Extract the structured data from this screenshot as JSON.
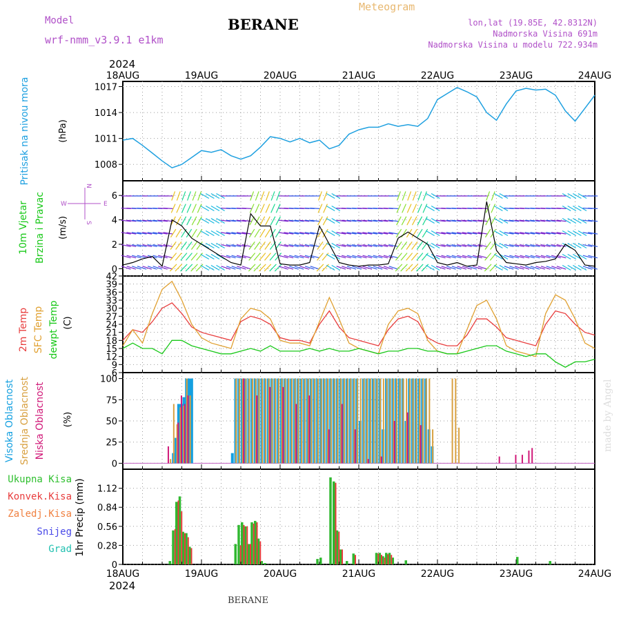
{
  "header": {
    "model_label": "Model",
    "model_name": "wrf-nmm_v3.9.1 e1km",
    "station": "BERANE",
    "product": "Meteogram",
    "coords": "lon,lat (19.85E, 42.8312N)",
    "elevation": "Nadmorska Visina 691m",
    "model_elevation": "Nadmorska Visina u modelu 722.934m",
    "year": "2024",
    "footer_station": "BERANE",
    "credit": "made by Angel"
  },
  "colors": {
    "pressure": "#1ea0e0",
    "wind_speed": "#000000",
    "temp_2m": "#e83c3c",
    "temp_sfc": "#e0a030",
    "dewpoint": "#18c818",
    "cloud_high": "#14a0e0",
    "cloud_mid": "#d8a040",
    "cloud_low": "#d01878",
    "precip_total": "#30b830",
    "precip_conv": "#e83c3c",
    "frame": "#000000"
  },
  "x_ticks": [
    "18AUG",
    "19AUG",
    "20AUG",
    "21AUG",
    "22AUG",
    "23AUG",
    "24AUG"
  ],
  "chart_data": [
    {
      "type": "line",
      "panel": "pressure",
      "ylabel_lines": [
        "Pritisak na nivou mora"
      ],
      "unit": "(hPa)",
      "yticks": [
        "1008",
        "1011",
        "1014",
        "1017"
      ],
      "ylim": [
        1006.1,
        1017.6
      ],
      "x_unit": "hours from 18AUG 00UTC",
      "x": [
        0,
        3,
        6,
        9,
        12,
        15,
        18,
        21,
        24,
        27,
        30,
        33,
        36,
        39,
        42,
        45,
        48,
        51,
        54,
        57,
        60,
        63,
        66,
        69,
        72,
        75,
        78,
        81,
        84,
        87,
        90,
        93,
        96,
        99,
        102,
        105,
        108,
        111,
        114,
        117,
        120,
        123,
        126,
        129,
        132,
        135,
        138,
        141,
        144
      ],
      "series": [
        {
          "name": "",
          "values": [
            1010.8,
            1011.0,
            1010.2,
            1009.3,
            1008.4,
            1007.6,
            1008.0,
            1008.8,
            1009.6,
            1009.4,
            1009.7,
            1009.0,
            1008.6,
            1009.0,
            1010.0,
            1011.2,
            1011.0,
            1010.6,
            1011.0,
            1010.5,
            1010.8,
            1009.8,
            1010.2,
            1011.5,
            1012.0,
            1012.3,
            1012.3,
            1012.7,
            1012.4,
            1012.6,
            1012.4,
            1013.3,
            1015.5,
            1016.2,
            1016.9,
            1016.4,
            1015.8,
            1014.0,
            1013.1,
            1015.0,
            1016.5,
            1016.8,
            1016.6,
            1016.7,
            1016.0,
            1014.2,
            1013.0,
            1014.5,
            1016.0
          ]
        }
      ]
    },
    {
      "type": "line",
      "panel": "wind",
      "ylabel_lines": [
        "10m Vjetar",
        "Brzina i Pravac"
      ],
      "unit": "(m/s)",
      "yticks": [
        "0",
        "2",
        "4",
        "6"
      ],
      "ylim": [
        -0.6,
        7.2
      ],
      "compass": [
        "W",
        "E",
        "N",
        "S"
      ],
      "x_unit": "hours from 18AUG 00UTC",
      "x": [
        0,
        3,
        6,
        9,
        12,
        15,
        18,
        21,
        24,
        27,
        30,
        33,
        36,
        39,
        42,
        45,
        48,
        51,
        54,
        57,
        60,
        63,
        66,
        69,
        72,
        75,
        78,
        81,
        84,
        87,
        90,
        93,
        96,
        99,
        102,
        105,
        108,
        111,
        114,
        117,
        120,
        123,
        126,
        129,
        132,
        135,
        138,
        141,
        144
      ],
      "series": [
        {
          "name": "",
          "values": [
            0.3,
            0.5,
            0.8,
            1.0,
            0.2,
            4.0,
            3.5,
            2.5,
            2.0,
            1.5,
            1.0,
            0.5,
            0.3,
            4.5,
            3.5,
            3.5,
            0.4,
            0.3,
            0.3,
            0.5,
            3.5,
            2.0,
            0.5,
            0.3,
            0.2,
            0.3,
            0.3,
            0.4,
            2.5,
            3.0,
            2.5,
            2.0,
            0.5,
            0.3,
            0.5,
            0.2,
            0.3,
            5.5,
            1.5,
            0.5,
            0.4,
            0.3,
            0.5,
            0.6,
            0.8,
            2.0,
            1.5,
            0.3,
            0.2
          ]
        }
      ]
    },
    {
      "type": "line",
      "panel": "temperature",
      "ylabel_lines": [
        "2m Temp",
        "SFC Temp",
        "dewpt Temp"
      ],
      "unit": "(C)",
      "yticks": [
        "6",
        "9",
        "12",
        "15",
        "18",
        "21",
        "24",
        "27",
        "30",
        "33",
        "36",
        "39",
        "42"
      ],
      "ylim": [
        6,
        42
      ],
      "x_unit": "hours from 18AUG 00UTC",
      "x": [
        0,
        3,
        6,
        9,
        12,
        15,
        18,
        21,
        24,
        27,
        30,
        33,
        36,
        39,
        42,
        45,
        48,
        51,
        54,
        57,
        60,
        63,
        66,
        69,
        72,
        75,
        78,
        81,
        84,
        87,
        90,
        93,
        96,
        99,
        102,
        105,
        108,
        111,
        114,
        117,
        120,
        123,
        126,
        129,
        132,
        135,
        138,
        141,
        144
      ],
      "series": [
        {
          "name": "2m Temp",
          "values": [
            18,
            22,
            21,
            25,
            30,
            32,
            28,
            23,
            21,
            20,
            19,
            18,
            25,
            27,
            26,
            24,
            19,
            18,
            18,
            17,
            24,
            29,
            23,
            19,
            18,
            17,
            16,
            22,
            26,
            27,
            25,
            19,
            17,
            16,
            16,
            20,
            26,
            26,
            23,
            19,
            18,
            17,
            16,
            24,
            29,
            28,
            24,
            21,
            20
          ]
        },
        {
          "name": "SFC Temp",
          "values": [
            16,
            22,
            17,
            28,
            37,
            40,
            33,
            24,
            19,
            17,
            16,
            15,
            26,
            30,
            29,
            26,
            18,
            17,
            17,
            16,
            25,
            34,
            26,
            17,
            15,
            14,
            13,
            24,
            29,
            30,
            28,
            18,
            14,
            13,
            13,
            22,
            31,
            33,
            26,
            16,
            14,
            13,
            12,
            28,
            35,
            33,
            26,
            17,
            15
          ]
        },
        {
          "name": "dewpt Temp",
          "values": [
            15,
            17,
            15,
            15,
            13,
            18,
            18,
            16,
            15,
            14,
            13,
            13,
            14,
            15,
            14,
            16,
            14,
            14,
            14,
            15,
            14,
            15,
            14,
            14,
            15,
            14,
            13,
            14,
            14,
            15,
            15,
            14,
            14,
            13,
            13,
            14,
            15,
            16,
            16,
            14,
            13,
            12,
            13,
            13,
            10,
            8,
            10,
            10,
            11
          ]
        }
      ]
    },
    {
      "type": "bar",
      "panel": "clouds",
      "ylabel_lines": [
        "Visoka Oblacnost",
        "Srednja Oblacnost",
        "Niska Oblacnost"
      ],
      "unit": "(%)",
      "yticks": [
        "0",
        "25",
        "50",
        "75",
        "100"
      ],
      "ylim": [
        -7,
        107
      ],
      "x_unit": "hours from 18AUG 00UTC",
      "series": [
        {
          "name": "Visoka Oblacnost",
          "x": [
            15,
            15.8,
            16.6,
            17.4,
            18.2,
            19,
            19.8,
            20.6,
            33,
            34,
            35,
            36,
            37,
            38,
            39,
            40,
            41,
            42,
            43,
            44,
            45,
            46,
            47,
            48,
            49,
            50,
            51,
            52,
            53,
            54,
            55,
            56,
            57,
            58,
            59,
            60,
            61,
            62,
            63,
            64,
            65,
            66,
            67,
            68,
            69,
            70,
            71,
            72,
            73,
            74,
            75,
            76,
            77,
            78,
            79,
            80,
            81,
            82,
            83,
            84,
            85,
            86,
            87,
            88,
            89,
            90,
            91,
            92,
            93,
            94
          ],
          "values": [
            12,
            30,
            70,
            70,
            78,
            100,
            100,
            100,
            12,
            100,
            100,
            100,
            100,
            100,
            100,
            100,
            100,
            100,
            100,
            100,
            100,
            100,
            100,
            100,
            100,
            100,
            100,
            100,
            100,
            100,
            100,
            100,
            100,
            100,
            100,
            100,
            100,
            100,
            100,
            100,
            100,
            100,
            100,
            100,
            100,
            100,
            100,
            50,
            100,
            100,
            100,
            100,
            100,
            100,
            40,
            100,
            100,
            100,
            100,
            100,
            100,
            50,
            100,
            100,
            100,
            100,
            100,
            100,
            40,
            20
          ]
        },
        {
          "name": "Srednja Oblacnost",
          "x": [
            14,
            15,
            16,
            17,
            18,
            19,
            20,
            34,
            35,
            36,
            37,
            38,
            39,
            40,
            41,
            42,
            43,
            44,
            45,
            46,
            47,
            48,
            49,
            50,
            51,
            52,
            53,
            54,
            55,
            56,
            57,
            58,
            59,
            60,
            61,
            62,
            63,
            64,
            65,
            66,
            67,
            68,
            69,
            70,
            71,
            72,
            73,
            74,
            75,
            76,
            77,
            78,
            79,
            80,
            81,
            82,
            83,
            84,
            85,
            86,
            87,
            88,
            89,
            90,
            91,
            92,
            93,
            94,
            100,
            101,
            102
          ],
          "values": [
            5,
            70,
            46,
            66,
            68,
            100,
            80,
            100,
            100,
            100,
            100,
            100,
            100,
            100,
            100,
            100,
            100,
            100,
            100,
            100,
            100,
            100,
            100,
            100,
            100,
            100,
            100,
            100,
            100,
            100,
            100,
            100,
            100,
            100,
            100,
            100,
            100,
            100,
            100,
            100,
            100,
            100,
            100,
            100,
            100,
            100,
            100,
            100,
            100,
            100,
            100,
            100,
            100,
            100,
            100,
            100,
            100,
            100,
            100,
            100,
            100,
            100,
            100,
            100,
            100,
            100,
            100,
            40,
            100,
            100,
            42
          ]
        },
        {
          "name": "Niska Oblacnost",
          "x": [
            13,
            16,
            17,
            18,
            19,
            36,
            40,
            44,
            48,
            52,
            56,
            62,
            66,
            70,
            74,
            78,
            82,
            86,
            90,
            114,
            119,
            121,
            123,
            124
          ],
          "values": [
            20,
            48,
            80,
            70,
            80,
            100,
            80,
            90,
            90,
            70,
            80,
            40,
            70,
            40,
            5,
            8,
            50,
            60,
            45,
            8,
            10,
            10,
            15,
            18
          ]
        }
      ]
    },
    {
      "type": "bar",
      "panel": "precipitation",
      "ylabel_lines": [
        "1hr Precip"
      ],
      "unit": "(mm)",
      "yticks": [
        "0",
        "0.28",
        "0.56",
        "0.84",
        "1.12"
      ],
      "ylim": [
        0,
        1.4
      ],
      "legend": [
        "Ukupna Kisa",
        "Konvek.Kisa",
        "Zaledj.Kisa",
        "Snijeg",
        "Grad"
      ],
      "x_unit": "hours from 18AUG 00UTC",
      "series": [
        {
          "name": "Ukupna Kisa",
          "x": [
            14,
            15,
            16,
            17,
            18,
            19,
            20,
            34,
            35,
            36,
            37,
            38,
            39,
            40,
            41,
            42,
            43,
            59,
            60,
            63,
            64,
            65,
            66,
            68,
            70,
            77,
            78,
            79,
            80,
            81,
            82,
            86,
            120,
            130
          ],
          "values": [
            0.05,
            0.5,
            0.92,
            1.0,
            0.48,
            0.46,
            0.26,
            0.3,
            0.58,
            0.62,
            0.56,
            0.3,
            0.62,
            0.64,
            0.38,
            0.05,
            0.02,
            0.08,
            0.1,
            1.28,
            1.22,
            0.5,
            0.22,
            0.05,
            0.16,
            0.17,
            0.17,
            0.12,
            0.17,
            0.17,
            0.1,
            0.06,
            0.11,
            0.05
          ]
        },
        {
          "name": "Konvek.Kisa",
          "x": [
            15,
            16,
            17,
            18,
            19,
            20,
            35,
            36,
            37,
            38,
            39,
            40,
            41,
            64,
            65,
            66,
            70,
            77,
            78,
            79,
            80,
            81
          ],
          "values": [
            0.52,
            0.94,
            0.78,
            0.46,
            0.4,
            0.24,
            0.28,
            0.58,
            0.56,
            0.3,
            0.6,
            0.62,
            0.34,
            1.2,
            0.48,
            0.22,
            0.14,
            0.16,
            0.14,
            0.1,
            0.15,
            0.14
          ]
        }
      ]
    }
  ]
}
